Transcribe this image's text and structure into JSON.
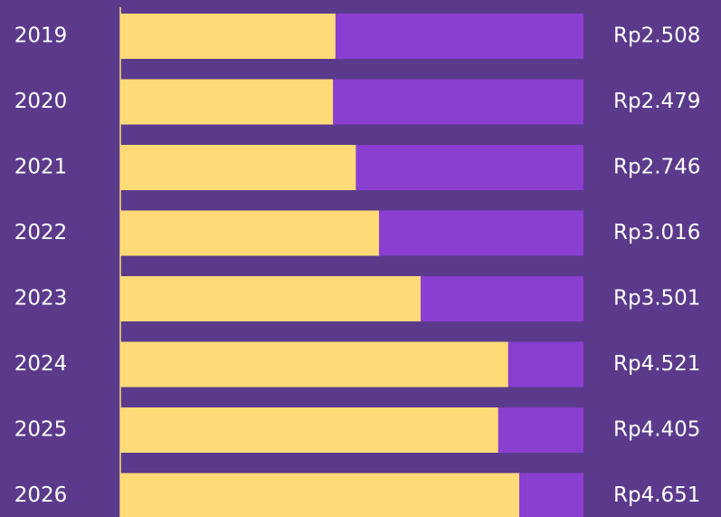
{
  "chart_data": {
    "type": "bar",
    "orientation": "horizontal",
    "categories": [
      "2019",
      "2020",
      "2021",
      "2022",
      "2023",
      "2024",
      "2025",
      "2026"
    ],
    "values": [
      2.508,
      2.479,
      2.746,
      3.016,
      3.501,
      4.521,
      4.405,
      4.651
    ],
    "value_labels": [
      "Rp2.508",
      "Rp2.479",
      "Rp2.746",
      "Rp3.016",
      "Rp3.501",
      "Rp4.521",
      "Rp4.405",
      "Rp4.651"
    ],
    "color": "#ffdb78",
    "track_color": "#8a3fd1",
    "background": "#5b3a8c",
    "xlim": [
      0,
      5.4
    ]
  }
}
